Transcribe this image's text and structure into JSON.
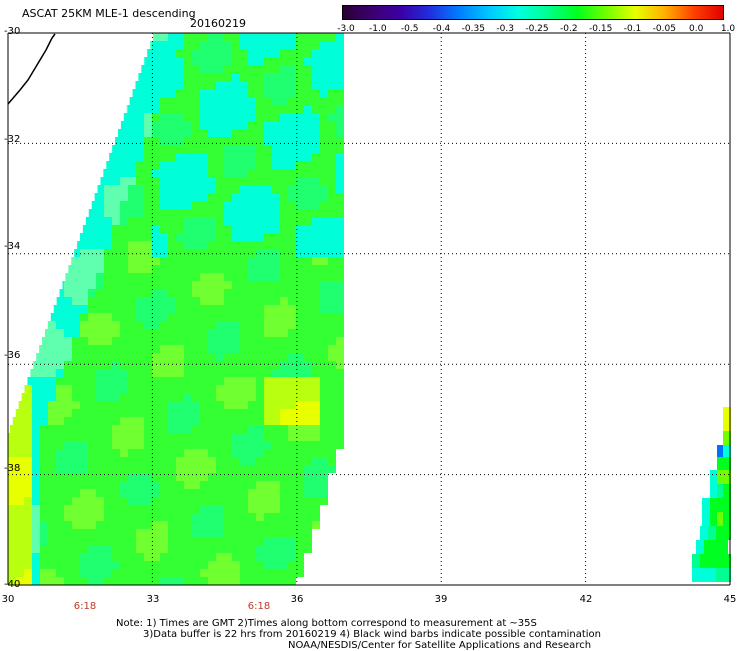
{
  "title": "ASCAT 25KM MLE-1 descending",
  "date": "20160219",
  "colorbar": {
    "ticks": [
      "-3.0",
      "-1.0",
      "-0.5",
      "-0.4",
      "-0.35",
      "-0.3",
      "-0.25",
      "-0.2",
      "-0.15",
      "-0.1",
      "-0.05",
      "0.0",
      "1.0"
    ],
    "colors": [
      "#2a0033",
      "#3d0070",
      "#3a00a8",
      "#2030e0",
      "#0080ff",
      "#00c8ff",
      "#00ffe0",
      "#00ff90",
      "#00ff20",
      "#70ff00",
      "#e8ff00",
      "#ffb000",
      "#ff4000",
      "#e00000"
    ]
  },
  "axes": {
    "lat_labels": [
      "-30",
      "-32",
      "-34",
      "-36",
      "-38",
      "-40"
    ],
    "lon_labels": [
      "30",
      "33",
      "36",
      "39",
      "42",
      "45"
    ],
    "time_labels": [
      "6:18",
      "6:18"
    ]
  },
  "notes": {
    "line1": "Note: 1) Times are GMT 2)Times along bottom correspond to measurement at ~35S",
    "line2": "3)Data buffer is 22 hrs from 20160219 4) Black wind barbs indicate possible contamination",
    "line3": "NOAA/NESDIS/Center for Satellite Applications and Research"
  },
  "colors": {
    "main_green": "#33ff33",
    "cyan": "#00ffd8",
    "yellow": "#e8ff00",
    "blue": "#0070ff"
  }
}
